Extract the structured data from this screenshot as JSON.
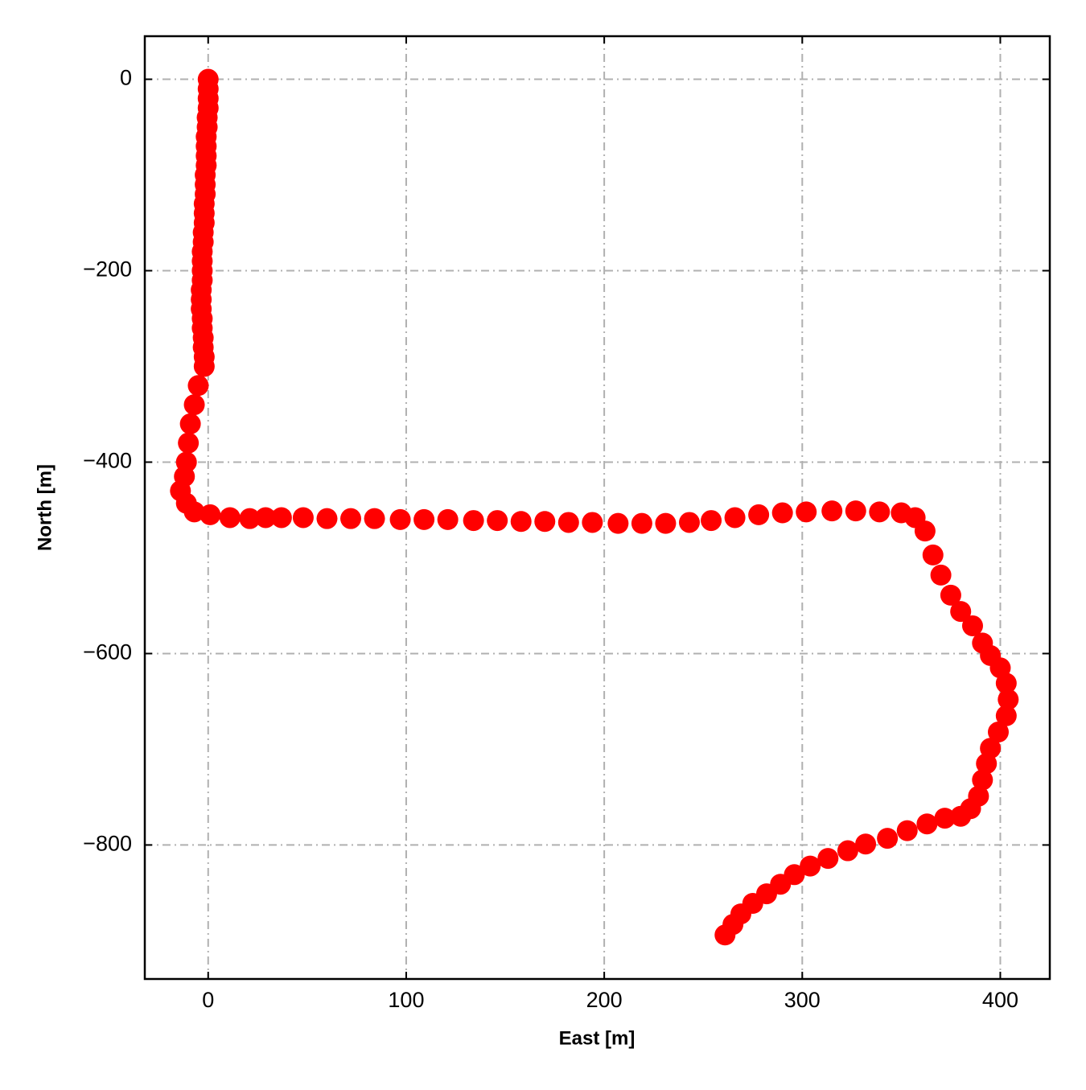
{
  "chart_data": {
    "type": "scatter",
    "xlabel": "East [m]",
    "ylabel": "North [m]",
    "color": "#ff0000",
    "x": [
      0,
      0,
      0,
      0,
      -0.5,
      -0.5,
      -1,
      -1,
      -1,
      -1,
      -1.5,
      -1.5,
      -1.5,
      -2,
      -2,
      -2,
      -2.5,
      -2.5,
      -3,
      -3,
      -3,
      -3,
      -3.5,
      -3.5,
      -3.5,
      -3,
      -3,
      -2.5,
      -2.5,
      -2,
      -2,
      -5,
      -7,
      -9,
      -10,
      -11,
      -12,
      -14,
      -11,
      -7,
      1,
      11,
      21,
      29,
      37,
      48,
      60,
      72,
      84,
      97,
      109,
      121,
      134,
      146,
      158,
      170,
      182,
      194,
      207,
      219,
      231,
      243,
      254,
      266,
      278,
      290,
      302,
      315,
      327,
      339,
      350,
      357,
      362,
      366,
      370,
      375,
      380,
      386,
      391,
      395,
      400,
      403,
      404,
      403,
      399,
      395,
      393,
      391,
      389,
      385,
      380,
      372,
      363,
      353,
      343,
      332,
      323,
      313,
      304,
      296,
      289,
      282,
      275,
      269,
      265,
      261
    ],
    "y": [
      0,
      -10,
      -20,
      -30,
      -40,
      -50,
      -60,
      -70,
      -80,
      -90,
      -100,
      -110,
      -120,
      -130,
      -140,
      -150,
      -160,
      -170,
      -180,
      -190,
      -200,
      -210,
      -220,
      -230,
      -240,
      -250,
      -260,
      -270,
      -280,
      -290,
      -300,
      -320,
      -340,
      -360,
      -380,
      -400,
      -415,
      -430,
      -443,
      -452,
      -455,
      -458,
      -459,
      -458,
      -458,
      -458,
      -459,
      -459,
      -459,
      -460,
      -460,
      -460,
      -461,
      -461,
      -462,
      -462,
      -463,
      -463,
      -464,
      -464,
      -464,
      -463,
      -461,
      -458,
      -455,
      -453,
      -452,
      -451,
      -451,
      -452,
      -453,
      -458,
      -472,
      -497,
      -518,
      -539,
      -556,
      -571,
      -589,
      -602,
      -615,
      -631,
      -648,
      -665,
      -682,
      -699,
      -715,
      -732,
      -749,
      -762,
      -770,
      -772,
      -778,
      -785,
      -793,
      -799,
      -806,
      -814,
      -822,
      -831,
      -841,
      -851,
      -861,
      -872,
      -883,
      -894
    ],
    "xlim": [
      -32,
      425
    ],
    "ylim": [
      -940,
      45
    ],
    "xticks": [
      0,
      100,
      200,
      300,
      400
    ],
    "yticks": [
      {
        "value": -800,
        "label": "−800"
      },
      {
        "value": -600,
        "label": "−600"
      },
      {
        "value": -400,
        "label": "−400"
      },
      {
        "value": -200,
        "label": "−200"
      },
      0
    ],
    "grid": true
  }
}
